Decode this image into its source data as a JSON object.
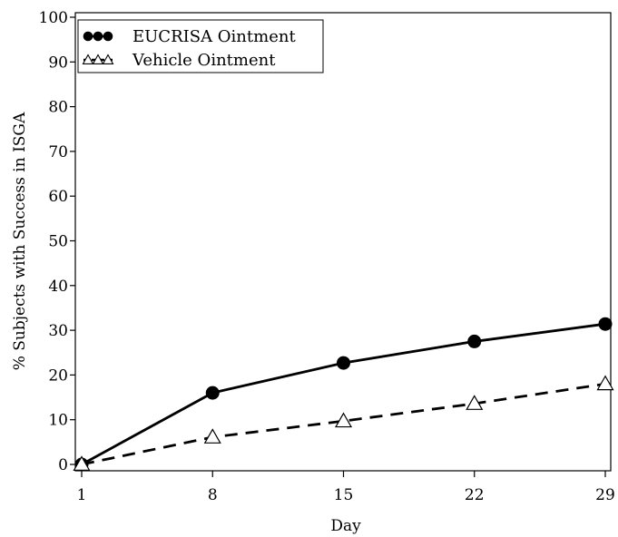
{
  "chart_data": {
    "type": "line",
    "title": "",
    "xlabel": "Day",
    "ylabel": "% Subjects with Success in ISGA",
    "x": [
      1,
      8,
      15,
      22,
      29
    ],
    "x_ticks": [
      "1",
      "8",
      "15",
      "22",
      "29"
    ],
    "y_ticks": [
      "0",
      "10",
      "20",
      "30",
      "40",
      "50",
      "60",
      "70",
      "80",
      "90",
      "100"
    ],
    "xlim": [
      1,
      29
    ],
    "ylim": [
      0,
      100
    ],
    "grid": false,
    "legend_position": "top-left",
    "series": [
      {
        "name": "EUCRISA Ointment",
        "values": [
          0,
          16,
          22.7,
          27.5,
          31.4
        ],
        "marker": "filled-circle",
        "line": "solid",
        "color": "#000000"
      },
      {
        "name": "Vehicle Ointment",
        "values": [
          0,
          6.1,
          9.7,
          13.6,
          18
        ],
        "marker": "open-triangle",
        "line": "dashed",
        "color": "#000000"
      }
    ]
  }
}
